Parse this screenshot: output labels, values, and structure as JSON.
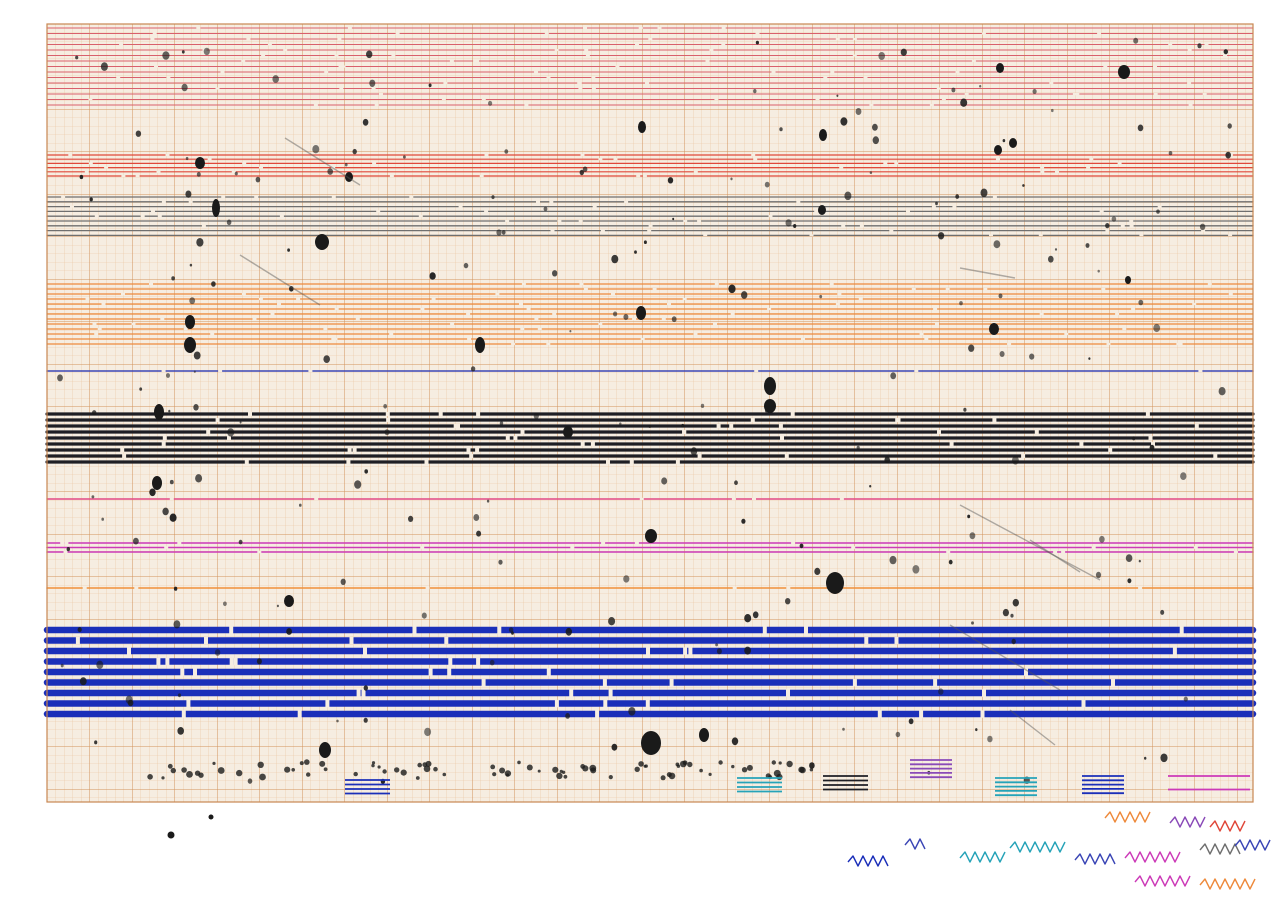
{
  "artwork": {
    "description_free": true,
    "colors": {
      "paper": "#ffffff",
      "grid_bg": "#f6ede1",
      "grid_minor": "#e5ba8f",
      "grid_major": "#cf8a55",
      "red_pink": "#d9606c",
      "red": "#e0483a",
      "gray": "#6f6f6f",
      "orange": "#ee8a3c",
      "navy": "#3b46b5",
      "black": "#1e1e24",
      "pink": "#e24a86",
      "magenta": "#cc3ab8",
      "orange_thin": "#f0903a",
      "blue": "#1b2fb9",
      "ink": "#1a1a1a",
      "teal": "#26a3b8",
      "purple": "#8a4ab8"
    },
    "bands": [
      {
        "color_key": "red_pink",
        "count": 15
      },
      {
        "color_key": "red",
        "count": 6
      },
      {
        "color_key": "gray",
        "count": 9
      },
      {
        "color_key": "orange",
        "count": 13
      },
      {
        "color_key": "navy",
        "count": 1
      },
      {
        "color_key": "black",
        "count": 9
      },
      {
        "color_key": "pink",
        "count": 1
      },
      {
        "color_key": "magenta",
        "count": 3
      },
      {
        "color_key": "orange_thin",
        "count": 1
      },
      {
        "color_key": "blue",
        "count": 9
      }
    ],
    "legend_swatches": [
      {
        "color_key": "blue",
        "lines": 4
      },
      {
        "color_key": "teal",
        "lines": 4
      },
      {
        "color_key": "black",
        "lines": 4
      },
      {
        "color_key": "purple",
        "lines": 5
      },
      {
        "color_key": "teal",
        "lines": 5
      },
      {
        "color_key": "blue",
        "lines": 5
      },
      {
        "color_key": "magenta",
        "lines": 2
      }
    ],
    "scribbles": [
      {
        "color_key": "blue"
      },
      {
        "color_key": "navy"
      },
      {
        "color_key": "teal"
      },
      {
        "color_key": "teal"
      },
      {
        "color_key": "navy"
      },
      {
        "color_key": "magenta"
      },
      {
        "color_key": "orange"
      },
      {
        "color_key": "purple"
      },
      {
        "color_key": "red"
      },
      {
        "color_key": "magenta"
      },
      {
        "color_key": "gray"
      },
      {
        "color_key": "navy"
      },
      {
        "color_key": "orange"
      }
    ]
  }
}
